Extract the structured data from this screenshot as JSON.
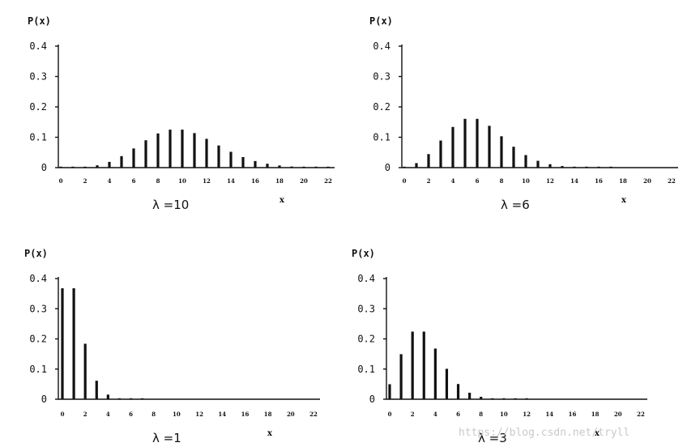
{
  "chart_data": [
    {
      "type": "bar",
      "title": "λ =10",
      "ylabel": "P(x)",
      "xlabel": "x",
      "ylim": [
        0,
        0.4
      ],
      "yticks": [
        "0",
        "0.1",
        "0.2",
        "0.3",
        "0.4"
      ],
      "xticks": [
        "0",
        "2",
        "4",
        "6",
        "8",
        "10",
        "12",
        "14",
        "16",
        "18",
        "20",
        "22"
      ],
      "x": [
        0,
        1,
        2,
        3,
        4,
        5,
        6,
        7,
        8,
        9,
        10,
        11,
        12,
        13,
        14,
        15,
        16,
        17,
        18,
        19,
        20,
        21,
        22
      ],
      "values": [
        5e-05,
        0.0005,
        0.0023,
        0.0076,
        0.0189,
        0.0378,
        0.0631,
        0.0901,
        0.1126,
        0.1251,
        0.1251,
        0.1137,
        0.0948,
        0.0729,
        0.0521,
        0.0347,
        0.0217,
        0.0128,
        0.0071,
        0.0037,
        0.0019,
        0.0009,
        0.0004
      ]
    },
    {
      "type": "bar",
      "title": "λ =6",
      "ylabel": "P(x)",
      "xlabel": "x",
      "ylim": [
        0,
        0.4
      ],
      "yticks": [
        "0",
        "0.1",
        "0.2",
        "0.3",
        "0.4"
      ],
      "xticks": [
        "0",
        "2",
        "4",
        "6",
        "8",
        "10",
        "12",
        "14",
        "16",
        "18",
        "20",
        "22"
      ],
      "x": [
        0,
        1,
        2,
        3,
        4,
        5,
        6,
        7,
        8,
        9,
        10,
        11,
        12,
        13,
        14,
        15,
        16,
        17,
        18,
        19,
        20,
        21,
        22
      ],
      "values": [
        0.0025,
        0.0149,
        0.0446,
        0.0892,
        0.1339,
        0.1606,
        0.1606,
        0.1377,
        0.1033,
        0.0688,
        0.0413,
        0.0225,
        0.0113,
        0.0052,
        0.0022,
        0.0009,
        0.0003,
        0.0001,
        0,
        0,
        0,
        0,
        0
      ]
    },
    {
      "type": "bar",
      "title": "λ =1",
      "ylabel": "P(x)",
      "xlabel": "x",
      "ylim": [
        0,
        0.4
      ],
      "yticks": [
        "0",
        "0.1",
        "0.2",
        "0.3",
        "0.4"
      ],
      "xticks": [
        "0",
        "2",
        "4",
        "6",
        "8",
        "10",
        "12",
        "14",
        "16",
        "18",
        "20",
        "22"
      ],
      "x": [
        0,
        1,
        2,
        3,
        4,
        5,
        6,
        7,
        8,
        9,
        10,
        11,
        12,
        13,
        14,
        15,
        16,
        17,
        18,
        19,
        20,
        21,
        22
      ],
      "values": [
        0.3679,
        0.3679,
        0.1839,
        0.0613,
        0.0153,
        0.0031,
        0.0005,
        0.0001,
        0,
        0,
        0,
        0,
        0,
        0,
        0,
        0,
        0,
        0,
        0,
        0,
        0,
        0,
        0
      ]
    },
    {
      "type": "bar",
      "title": "λ =3",
      "ylabel": "P(x)",
      "xlabel": "x",
      "ylim": [
        0,
        0.4
      ],
      "yticks": [
        "0",
        "0.1",
        "0.2",
        "0.3",
        "0.4"
      ],
      "xticks": [
        "0",
        "2",
        "4",
        "6",
        "8",
        "10",
        "12",
        "14",
        "16",
        "18",
        "20",
        "22"
      ],
      "x": [
        0,
        1,
        2,
        3,
        4,
        5,
        6,
        7,
        8,
        9,
        10,
        11,
        12,
        13,
        14,
        15,
        16,
        17,
        18,
        19,
        20,
        21,
        22
      ],
      "values": [
        0.0498,
        0.1494,
        0.224,
        0.224,
        0.168,
        0.1008,
        0.0504,
        0.0216,
        0.0081,
        0.0027,
        0.0008,
        0.0002,
        0.0001,
        0,
        0,
        0,
        0,
        0,
        0,
        0,
        0,
        0,
        0
      ]
    }
  ],
  "watermark": "https://blog.csdn.net/tryll"
}
